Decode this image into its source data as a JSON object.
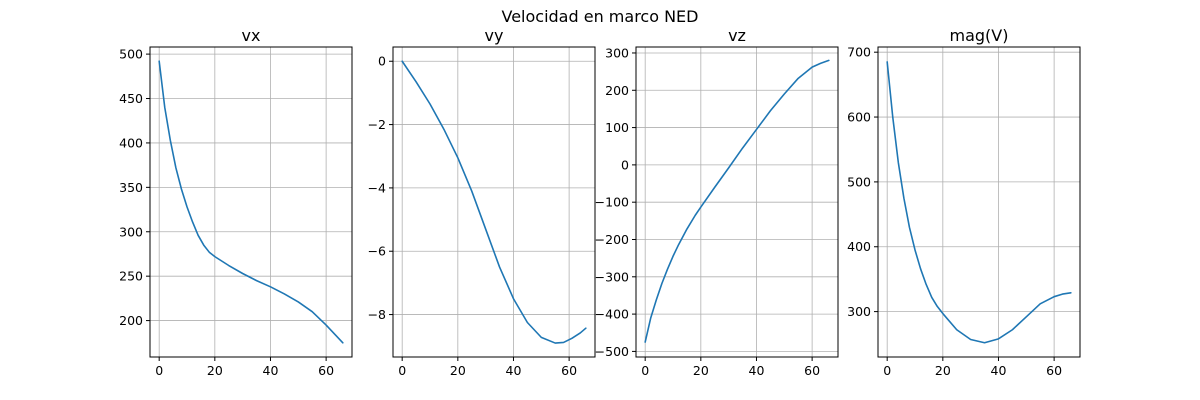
{
  "figure_title": "Velocidad en marco NED",
  "colors": {
    "series": "#1f77b4",
    "grid": "#b0b0b0",
    "axes": "#000000",
    "background": "#ffffff"
  },
  "chart_data": [
    {
      "type": "line",
      "title": "vx",
      "xlabel": "",
      "ylabel": "",
      "grid": true,
      "xlim": [
        -3.3,
        69.3
      ],
      "ylim": [
        159,
        508
      ],
      "xticks": [
        0,
        20,
        40,
        60
      ],
      "yticks": [
        200,
        250,
        300,
        350,
        400,
        450,
        500
      ],
      "series": [
        {
          "x": [
            0,
            2,
            4,
            6,
            8,
            10,
            12,
            14,
            16,
            18,
            20,
            25,
            30,
            35,
            40,
            45,
            50,
            55,
            60,
            63,
            66
          ],
          "y": [
            492,
            440,
            403,
            372,
            348,
            328,
            311,
            296,
            285,
            277,
            272,
            262,
            253,
            245,
            238,
            230,
            221,
            210,
            195,
            185,
            175
          ]
        }
      ]
    },
    {
      "type": "line",
      "title": "vy",
      "xlabel": "",
      "ylabel": "",
      "grid": true,
      "xlim": [
        -3.3,
        69.3
      ],
      "ylim": [
        -9.34,
        0.45
      ],
      "xticks": [
        0,
        20,
        40,
        60
      ],
      "yticks": [
        0,
        -2,
        -4,
        -6,
        -8
      ],
      "series": [
        {
          "x": [
            0,
            5,
            10,
            15,
            20,
            25,
            30,
            35,
            40,
            45,
            50,
            55,
            58,
            61,
            64,
            66
          ],
          "y": [
            0,
            -0.65,
            -1.35,
            -2.15,
            -3.05,
            -4.1,
            -5.3,
            -6.5,
            -7.5,
            -8.25,
            -8.72,
            -8.9,
            -8.88,
            -8.75,
            -8.58,
            -8.43
          ]
        }
      ]
    },
    {
      "type": "line",
      "title": "vz",
      "xlabel": "",
      "ylabel": "",
      "grid": true,
      "xlim": [
        -3.3,
        69.3
      ],
      "ylim": [
        -515,
        316
      ],
      "xticks": [
        0,
        20,
        40,
        60
      ],
      "yticks": [
        -500,
        -400,
        -300,
        -200,
        -100,
        0,
        100,
        200,
        300
      ],
      "series": [
        {
          "x": [
            0,
            2,
            4,
            6,
            8,
            10,
            12,
            15,
            18,
            20,
            25,
            30,
            35,
            40,
            45,
            50,
            55,
            60,
            63,
            66
          ],
          "y": [
            -475,
            -410,
            -362,
            -318,
            -280,
            -245,
            -214,
            -172,
            -135,
            -113,
            -60,
            -8,
            45,
            95,
            145,
            190,
            232,
            262,
            272,
            280
          ]
        }
      ]
    },
    {
      "type": "line",
      "title": "mag(V)",
      "xlabel": "",
      "ylabel": "",
      "grid": true,
      "xlim": [
        -3.3,
        69.3
      ],
      "ylim": [
        230,
        708
      ],
      "xticks": [
        0,
        20,
        40,
        60
      ],
      "yticks": [
        300,
        400,
        500,
        600,
        700
      ],
      "series": [
        {
          "x": [
            0,
            2,
            4,
            6,
            8,
            10,
            12,
            14,
            16,
            18,
            20,
            25,
            30,
            35,
            40,
            45,
            50,
            55,
            60,
            63,
            66
          ],
          "y": [
            685,
            600,
            530,
            475,
            430,
            395,
            366,
            342,
            322,
            308,
            297,
            272,
            257,
            252,
            258,
            272,
            292,
            312,
            323,
            327,
            329
          ]
        }
      ]
    }
  ]
}
